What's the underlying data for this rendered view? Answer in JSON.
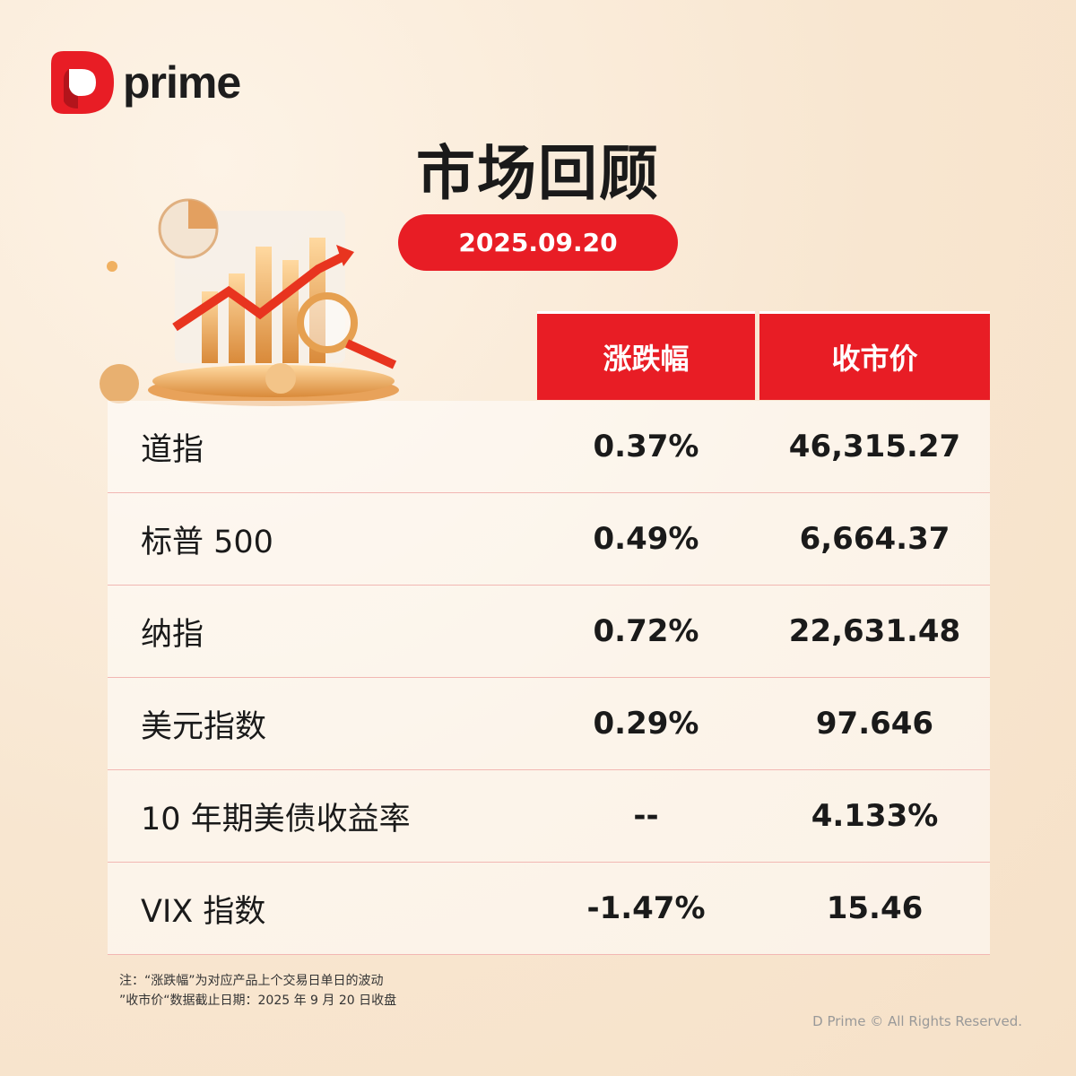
{
  "brand": {
    "logo_text": "prime",
    "accent": "#e81d25"
  },
  "title": "市场回顾",
  "date": "2025.09.20",
  "table": {
    "headers": [
      "涨跌幅",
      "收市价"
    ],
    "rows": [
      {
        "name": "道指",
        "change": "0.37%",
        "close": "46,315.27"
      },
      {
        "name": "标普 500",
        "change": "0.49%",
        "close": "6,664.37"
      },
      {
        "name": "纳指",
        "change": "0.72%",
        "close": "22,631.48"
      },
      {
        "name": "美元指数",
        "change": "0.29%",
        "close": "97.646"
      },
      {
        "name": "10 年期美债收益率",
        "change": "--",
        "close": "4.133%"
      },
      {
        "name": "VIX 指数",
        "change": "-1.47%",
        "close": "15.46"
      }
    ]
  },
  "notes": [
    "注：“涨跌幅”为对应产品上个交易日单日的波动",
    "”收市价“数据截止日期：2025 年 9 月 20 日收盘"
  ],
  "copyright": "D Prime © All Rights Reserved."
}
